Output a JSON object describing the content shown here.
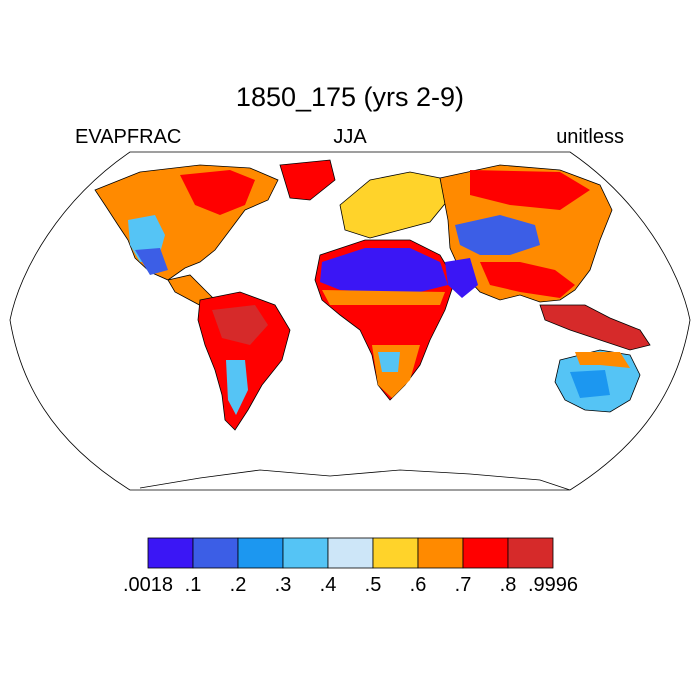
{
  "title": "1850_175 (yrs 2-9)",
  "left_label": "EVAPFRAC",
  "center_label": "JJA",
  "right_label": "unitless",
  "colorbar": {
    "colors": [
      "#3b16f5",
      "#3c5ee6",
      "#1c97f0",
      "#55c4f5",
      "#cde6f8",
      "#ffd32a",
      "#ff8a00",
      "#ff0000",
      "#d62a2a"
    ],
    "tick_labels": [
      ".0018",
      ".1",
      ".2",
      ".3",
      ".4",
      ".5",
      ".6",
      ".7",
      ".8",
      ".9996"
    ]
  },
  "map": {
    "projection": "Robinson",
    "colors": {
      "ocean": "#ffffff",
      "coastline": "#000000"
    }
  }
}
